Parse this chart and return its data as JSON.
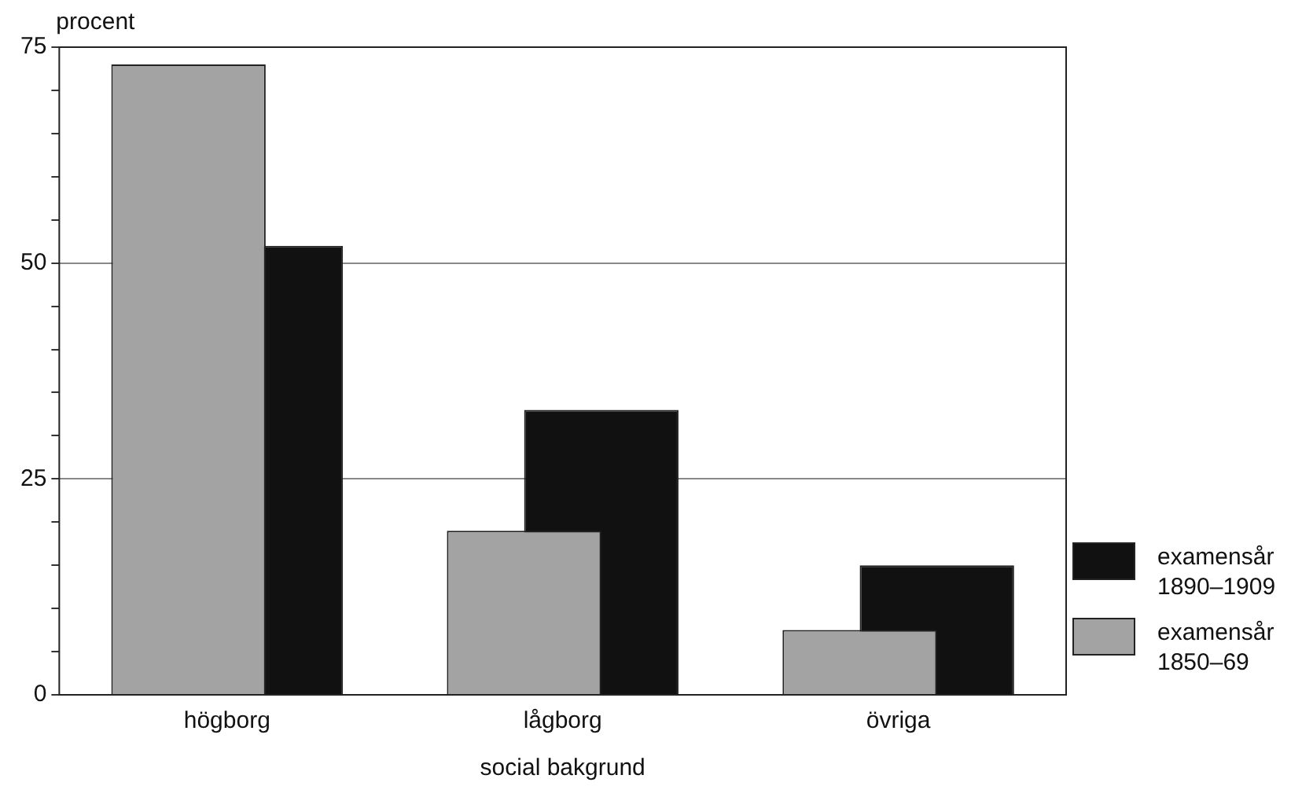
{
  "chart_data": {
    "type": "bar",
    "ylabel": "procent",
    "xlabel": "social bakgrund",
    "categories": [
      "högborg",
      "lågborg",
      "övriga"
    ],
    "series": [
      {
        "name": "examensår 1890–1909",
        "color": "#111111",
        "values": [
          52,
          33,
          15
        ]
      },
      {
        "name": "examensår 1850–69",
        "color": "#a3a3a3",
        "values": [
          73,
          19,
          7.5
        ]
      }
    ],
    "ylim": [
      0,
      75
    ],
    "yticks": [
      0,
      {
        "value": 5,
        "label": null
      },
      {
        "value": 10,
        "label": null
      },
      {
        "value": 15,
        "label": null
      },
      {
        "value": 20,
        "label": null
      },
      25,
      {
        "value": 30,
        "label": null
      },
      {
        "value": 35,
        "label": null
      },
      {
        "value": 40,
        "label": null
      },
      {
        "value": 45,
        "label": null
      },
      50,
      {
        "value": 55,
        "label": null
      },
      {
        "value": 60,
        "label": null
      },
      {
        "value": 65,
        "label": null
      },
      {
        "value": 70,
        "label": null
      },
      75
    ],
    "grid": "y",
    "legend": "right"
  }
}
